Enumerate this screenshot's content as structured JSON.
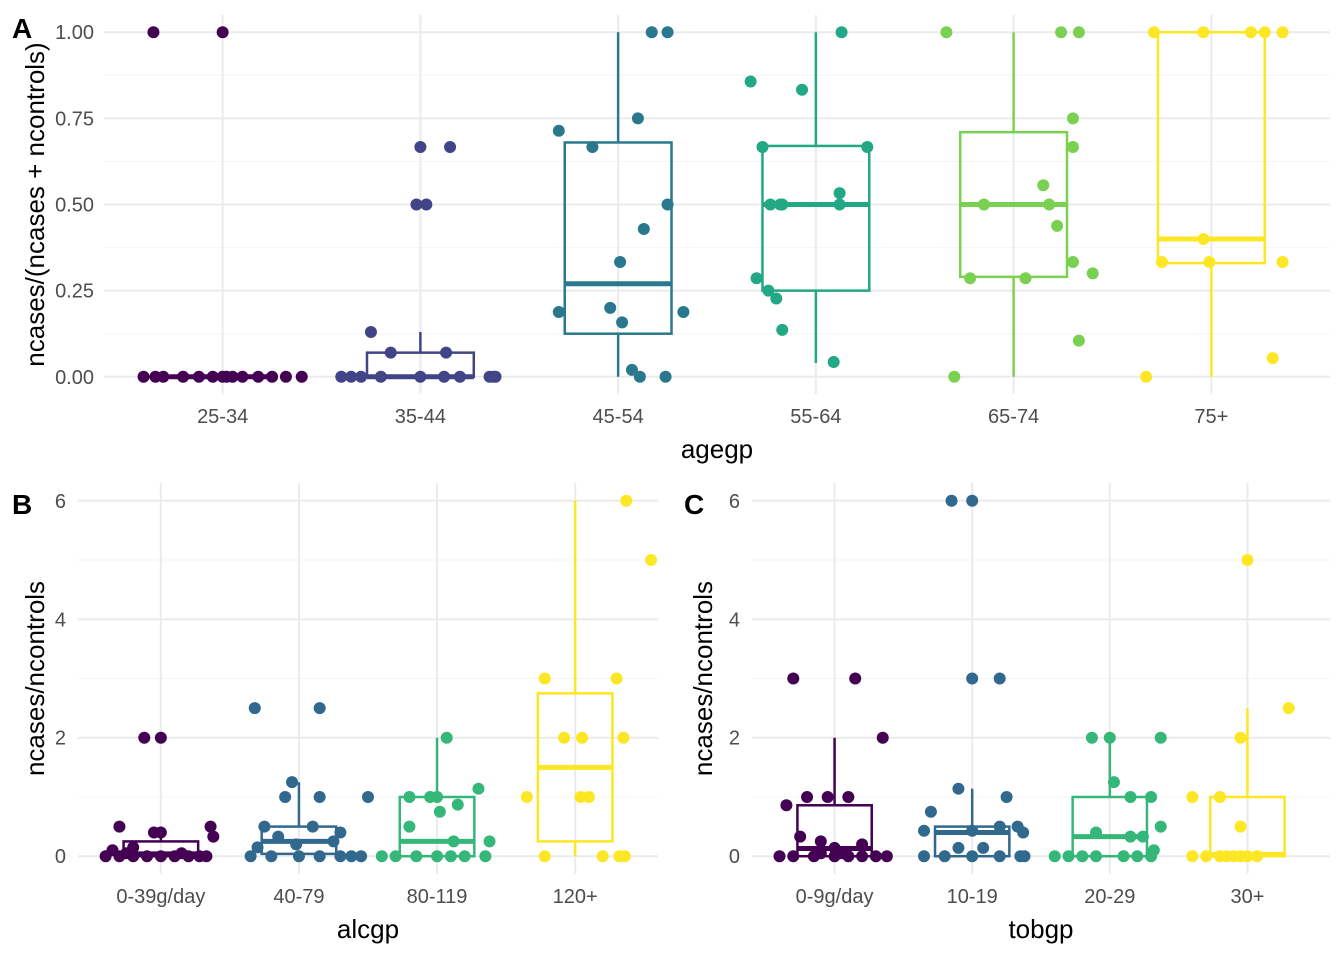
{
  "chart_data": [
    {
      "tag": "A",
      "type": "box+jitter",
      "xlabel": "agegp",
      "ylabel": "ncases/(ncases + ncontrols)",
      "ylim": [
        0,
        1
      ],
      "yticks": [
        "0.00",
        "0.25",
        "0.50",
        "0.75",
        "1.00"
      ],
      "ytick_values": [
        0,
        0.25,
        0.5,
        0.75,
        1.0
      ],
      "categories": [
        "25-34",
        "35-44",
        "45-54",
        "55-64",
        "65-74",
        "75+"
      ],
      "colors": [
        "#440154",
        "#414487",
        "#2a788e",
        "#22a884",
        "#7ad151",
        "#fde725"
      ],
      "boxes": [
        {
          "lower_whisker": 0,
          "q1": 0,
          "median": 0,
          "q3": 0,
          "upper_whisker": 0
        },
        {
          "lower_whisker": 0,
          "q1": 0,
          "median": 0,
          "q3": 0.07,
          "upper_whisker": 0.13
        },
        {
          "lower_whisker": 0,
          "q1": 0.125,
          "median": 0.27,
          "q3": 0.68,
          "upper_whisker": 1.0
        },
        {
          "lower_whisker": 0.04,
          "q1": 0.25,
          "median": 0.5,
          "q3": 0.67,
          "upper_whisker": 1.0
        },
        {
          "lower_whisker": 0,
          "q1": 0.29,
          "median": 0.5,
          "q3": 0.71,
          "upper_whisker": 1.0
        },
        {
          "lower_whisker": 0,
          "q1": 0.33,
          "median": 0.4,
          "q3": 1.0,
          "upper_whisker": 1.0
        }
      ],
      "points": [
        [
          [
            -0.35,
            1.0
          ],
          [
            0.0,
            1.0
          ],
          [
            -0.4,
            0
          ],
          [
            -0.34,
            0
          ],
          [
            -0.2,
            0
          ],
          [
            -0.12,
            0
          ],
          [
            -0.05,
            0
          ],
          [
            0.0,
            0
          ],
          [
            0.02,
            0
          ],
          [
            0.05,
            0
          ],
          [
            0.18,
            0
          ],
          [
            0.25,
            0
          ],
          [
            0.32,
            0
          ],
          [
            0.4,
            0
          ],
          [
            -0.3,
            0
          ],
          [
            0.1,
            0
          ]
        ],
        [
          [
            0.0,
            0.667
          ],
          [
            0.15,
            0.667
          ],
          [
            -0.02,
            0.5
          ],
          [
            0.03,
            0.5
          ],
          [
            -0.25,
            0.13
          ],
          [
            -0.15,
            0.07
          ],
          [
            0.13,
            0.07
          ],
          [
            -0.4,
            0
          ],
          [
            -0.35,
            0
          ],
          [
            -0.3,
            0
          ],
          [
            -0.2,
            0
          ],
          [
            0.0,
            0
          ],
          [
            0.12,
            0
          ],
          [
            0.2,
            0
          ],
          [
            0.35,
            0
          ],
          [
            0.37,
            0
          ],
          [
            0.38,
            0
          ]
        ],
        [
          [
            0.17,
            1.0
          ],
          [
            0.25,
            1.0
          ],
          [
            -0.3,
            0.714
          ],
          [
            0.1,
            0.75
          ],
          [
            -0.13,
            0.667
          ],
          [
            0.25,
            0.5
          ],
          [
            0.13,
            0.429
          ],
          [
            0.01,
            0.333
          ],
          [
            -0.3,
            0.188
          ],
          [
            -0.04,
            0.2
          ],
          [
            0.02,
            0.158
          ],
          [
            0.33,
            0.188
          ],
          [
            0.07,
            0.02
          ],
          [
            0.11,
            0
          ],
          [
            0.24,
            0
          ]
        ],
        [
          [
            0.13,
            1.0
          ],
          [
            -0.33,
            0.857
          ],
          [
            -0.07,
            0.833
          ],
          [
            -0.27,
            0.667
          ],
          [
            0.26,
            0.667
          ],
          [
            0.12,
            0.533
          ],
          [
            -0.17,
            0.5
          ],
          [
            -0.23,
            0.5
          ],
          [
            -0.18,
            0.5
          ],
          [
            0.12,
            0.5
          ],
          [
            -0.3,
            0.286
          ],
          [
            -0.24,
            0.25
          ],
          [
            -0.2,
            0.227
          ],
          [
            -0.17,
            0.136
          ],
          [
            0.09,
            0.043
          ]
        ],
        [
          [
            -0.34,
            1.0
          ],
          [
            0.24,
            1.0
          ],
          [
            0.33,
            1.0
          ],
          [
            -0.15,
            0.5
          ],
          [
            0.18,
            0.5
          ],
          [
            0.3,
            0.75
          ],
          [
            0.3,
            0.667
          ],
          [
            0.15,
            0.556
          ],
          [
            0.22,
            0.438
          ],
          [
            0.3,
            0.333
          ],
          [
            0.4,
            0.3
          ],
          [
            -0.22,
            0.286
          ],
          [
            0.06,
            0.286
          ],
          [
            0.33,
            0.105
          ],
          [
            -0.3,
            0
          ]
        ],
        [
          [
            -0.29,
            1.0
          ],
          [
            -0.04,
            1.0
          ],
          [
            0.2,
            1.0
          ],
          [
            0.27,
            1.0
          ],
          [
            0.36,
            1.0
          ],
          [
            -0.25,
            0.333
          ],
          [
            -0.01,
            0.333
          ],
          [
            0.36,
            0.333
          ],
          [
            -0.04,
            0.4
          ],
          [
            0.31,
            0.054
          ],
          [
            -0.33,
            0
          ]
        ]
      ]
    },
    {
      "tag": "B",
      "type": "box+jitter",
      "xlabel": "alcgp",
      "ylabel": "ncases/ncontrols",
      "ylim": [
        0,
        6
      ],
      "yticks": [
        "0",
        "2",
        "4",
        "6"
      ],
      "ytick_values": [
        0,
        2,
        4,
        6
      ],
      "categories": [
        "0-39g/day",
        "40-79",
        "80-119",
        "120+"
      ],
      "colors": [
        "#440154",
        "#31688e",
        "#35b779",
        "#fde725"
      ],
      "boxes": [
        {
          "lower_whisker": 0,
          "q1": 0,
          "median": 0.04,
          "q3": 0.25,
          "upper_whisker": 0.5
        },
        {
          "lower_whisker": 0,
          "q1": 0.04,
          "median": 0.25,
          "q3": 0.5,
          "upper_whisker": 1.25
        },
        {
          "lower_whisker": 0,
          "q1": 0,
          "median": 0.25,
          "q3": 1.0,
          "upper_whisker": 2.0
        },
        {
          "lower_whisker": 0,
          "q1": 0.25,
          "median": 1.5,
          "q3": 2.75,
          "upper_whisker": 6.0
        }
      ],
      "points": [
        [
          [
            -0.12,
            2.0
          ],
          [
            0.0,
            2.0
          ],
          [
            -0.3,
            0.5
          ],
          [
            -0.05,
            0.4
          ],
          [
            0.0,
            0.4
          ],
          [
            0.36,
            0.5
          ],
          [
            0.38,
            0.33
          ],
          [
            -0.2,
            0.15
          ],
          [
            -0.35,
            0.1
          ],
          [
            -0.4,
            0
          ],
          [
            -0.3,
            0
          ],
          [
            -0.2,
            0
          ],
          [
            -0.1,
            0
          ],
          [
            0.0,
            0
          ],
          [
            0.1,
            0
          ],
          [
            0.2,
            0
          ],
          [
            0.28,
            0
          ],
          [
            0.33,
            0
          ],
          [
            -0.25,
            0.05
          ],
          [
            0.15,
            0.05
          ]
        ],
        [
          [
            -0.32,
            2.5
          ],
          [
            0.15,
            2.5
          ],
          [
            -0.05,
            1.25
          ],
          [
            -0.1,
            1.0
          ],
          [
            0.15,
            1.0
          ],
          [
            0.5,
            1.0
          ],
          [
            -0.25,
            0.5
          ],
          [
            0.1,
            0.5
          ],
          [
            0.3,
            0.4
          ],
          [
            -0.15,
            0.33
          ],
          [
            -0.02,
            0.2
          ],
          [
            0.25,
            0.25
          ],
          [
            -0.35,
            0
          ],
          [
            -0.2,
            0
          ],
          [
            0.0,
            0
          ],
          [
            0.15,
            0
          ],
          [
            0.3,
            0
          ],
          [
            0.38,
            0
          ],
          [
            0.45,
            0
          ],
          [
            -0.3,
            0.15
          ]
        ],
        [
          [
            0.07,
            2.0
          ],
          [
            -0.2,
            1.0
          ],
          [
            -0.05,
            1.0
          ],
          [
            0.0,
            1.0
          ],
          [
            0.3,
            1.14
          ],
          [
            -0.2,
            0.5
          ],
          [
            0.15,
            0.87
          ],
          [
            0.02,
            0.75
          ],
          [
            0.38,
            0.25
          ],
          [
            -0.4,
            0
          ],
          [
            -0.3,
            0
          ],
          [
            -0.15,
            0
          ],
          [
            0.0,
            0
          ],
          [
            0.1,
            0
          ],
          [
            0.2,
            0
          ],
          [
            0.35,
            0
          ],
          [
            0.12,
            0.25
          ]
        ],
        [
          [
            0.37,
            6.0
          ],
          [
            0.55,
            5.0
          ],
          [
            -0.22,
            3.0
          ],
          [
            0.3,
            3.0
          ],
          [
            -0.08,
            2.0
          ],
          [
            0.05,
            2.0
          ],
          [
            0.35,
            2.0
          ],
          [
            -0.35,
            1.0
          ],
          [
            0.04,
            1.0
          ],
          [
            0.1,
            1.0
          ],
          [
            -0.22,
            0
          ],
          [
            0.2,
            0
          ],
          [
            0.32,
            0
          ],
          [
            0.36,
            0
          ]
        ]
      ]
    },
    {
      "tag": "C",
      "type": "box+jitter",
      "xlabel": "tobgp",
      "ylabel": "ncases/ncontrols",
      "ylim": [
        0,
        6
      ],
      "yticks": [
        "0",
        "2",
        "4",
        "6"
      ],
      "ytick_values": [
        0,
        2,
        4,
        6
      ],
      "categories": [
        "0-9g/day",
        "10-19",
        "20-29",
        "30+"
      ],
      "colors": [
        "#440154",
        "#31688e",
        "#35b779",
        "#fde725"
      ],
      "boxes": [
        {
          "lower_whisker": 0,
          "q1": 0,
          "median": 0.13,
          "q3": 0.86,
          "upper_whisker": 2.0
        },
        {
          "lower_whisker": 0,
          "q1": 0,
          "median": 0.4,
          "q3": 0.5,
          "upper_whisker": 1.14
        },
        {
          "lower_whisker": 0,
          "q1": 0,
          "median": 0.33,
          "q3": 1.0,
          "upper_whisker": 2.0
        },
        {
          "lower_whisker": 0,
          "q1": 0,
          "median": 0.03,
          "q3": 1.0,
          "upper_whisker": 2.5
        }
      ],
      "points": [
        [
          [
            -0.3,
            3.0
          ],
          [
            0.15,
            3.0
          ],
          [
            0.35,
            2.0
          ],
          [
            -0.35,
            0.86
          ],
          [
            -0.2,
            1.0
          ],
          [
            -0.05,
            1.0
          ],
          [
            0.1,
            1.0
          ],
          [
            -0.25,
            0.33
          ],
          [
            -0.1,
            0.25
          ],
          [
            0.0,
            0.14
          ],
          [
            0.2,
            0.2
          ],
          [
            -0.4,
            0
          ],
          [
            -0.3,
            0
          ],
          [
            -0.15,
            0
          ],
          [
            0.0,
            0
          ],
          [
            0.1,
            0
          ],
          [
            0.2,
            0
          ],
          [
            0.3,
            0
          ],
          [
            0.38,
            0
          ],
          [
            0.05,
            0.05
          ],
          [
            -0.1,
            0.05
          ]
        ],
        [
          [
            -0.15,
            6.0
          ],
          [
            0.0,
            6.0
          ],
          [
            0.0,
            3.0
          ],
          [
            0.2,
            3.0
          ],
          [
            -0.3,
            0.75
          ],
          [
            -0.1,
            1.14
          ],
          [
            0.25,
            1.0
          ],
          [
            -0.35,
            0.43
          ],
          [
            0.0,
            0.43
          ],
          [
            0.2,
            0.5
          ],
          [
            0.33,
            0.5
          ],
          [
            0.37,
            0.4
          ],
          [
            -0.1,
            0.14
          ],
          [
            0.08,
            0.14
          ],
          [
            -0.35,
            0
          ],
          [
            -0.2,
            0
          ],
          [
            0.0,
            0
          ],
          [
            0.2,
            0
          ],
          [
            0.35,
            0
          ],
          [
            0.38,
            0
          ]
        ],
        [
          [
            -0.13,
            2.0
          ],
          [
            0.0,
            2.0
          ],
          [
            0.37,
            2.0
          ],
          [
            0.03,
            1.25
          ],
          [
            0.15,
            1.0
          ],
          [
            0.3,
            1.0
          ],
          [
            -0.1,
            0.4
          ],
          [
            0.15,
            0.33
          ],
          [
            0.24,
            0.33
          ],
          [
            0.32,
            0.1
          ],
          [
            -0.4,
            0
          ],
          [
            -0.3,
            0
          ],
          [
            -0.2,
            0
          ],
          [
            -0.1,
            0
          ],
          [
            0.1,
            0
          ],
          [
            0.2,
            0
          ],
          [
            0.3,
            0
          ],
          [
            0.37,
            0.5
          ]
        ],
        [
          [
            0.0,
            5.0
          ],
          [
            0.3,
            2.5
          ],
          [
            -0.05,
            2.0
          ],
          [
            -0.4,
            1.0
          ],
          [
            -0.2,
            1.0
          ],
          [
            -0.05,
            0.5
          ],
          [
            -0.4,
            0
          ],
          [
            -0.3,
            0
          ],
          [
            -0.2,
            0
          ],
          [
            -0.1,
            0
          ],
          [
            0.0,
            0
          ],
          [
            0.07,
            0
          ],
          [
            -0.15,
            0
          ],
          [
            -0.05,
            0
          ]
        ]
      ]
    }
  ]
}
